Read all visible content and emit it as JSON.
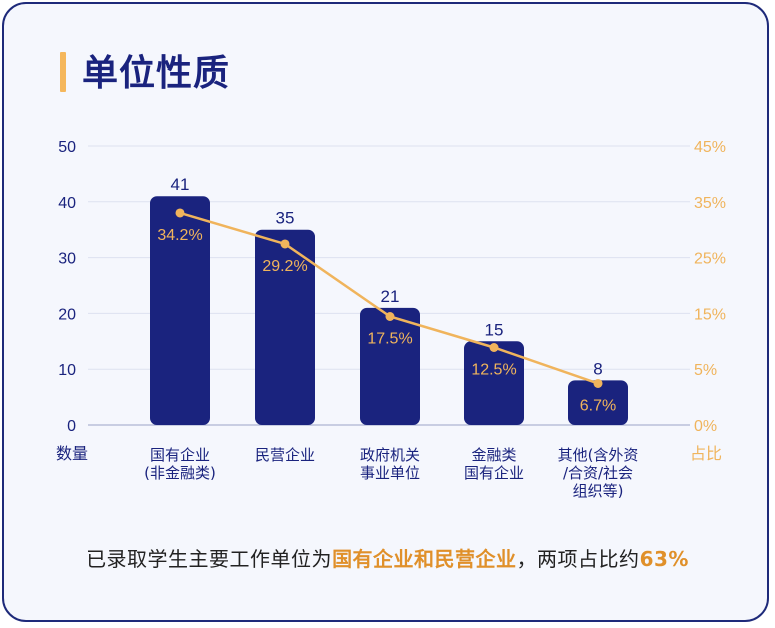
{
  "title": "单位性质",
  "chart_data": {
    "type": "bar",
    "categories": [
      [
        "国有企业",
        "(非金融类)"
      ],
      [
        "民营企业"
      ],
      [
        "政府机关",
        "事业单位"
      ],
      [
        "金融类",
        "国有企业"
      ],
      [
        "其他(含外资",
        "/合资/社会",
        "组织等)"
      ]
    ],
    "series": [
      {
        "values": [
          41,
          35,
          21,
          15,
          8
        ],
        "color": "#1a237e",
        "axis": "left"
      },
      {
        "values": [
          34.2,
          29.2,
          17.5,
          12.5,
          6.7
        ],
        "color": "#f0b45c",
        "axis": "right",
        "kind": "line"
      }
    ],
    "value_labels": [
      "41",
      "35",
      "21",
      "15",
      "8"
    ],
    "percent_labels": [
      "34.2%",
      "29.2%",
      "17.5%",
      "12.5%",
      "6.7%"
    ],
    "ylabel": "数量",
    "y2label": "占比",
    "ylim": [
      0,
      50
    ],
    "y2lim": [
      0,
      45
    ],
    "yticks": [
      "0",
      "10",
      "20",
      "30",
      "40",
      "50"
    ],
    "y2ticks": [
      "0%",
      "5%",
      "15%",
      "25%",
      "35%",
      "45%"
    ],
    "grid": true
  },
  "footer": {
    "prefix": "已录取学生主要工作单位为",
    "highlight": "国有企业和民营企业",
    "middle": "，两项占比约",
    "highlight2": "63%"
  }
}
